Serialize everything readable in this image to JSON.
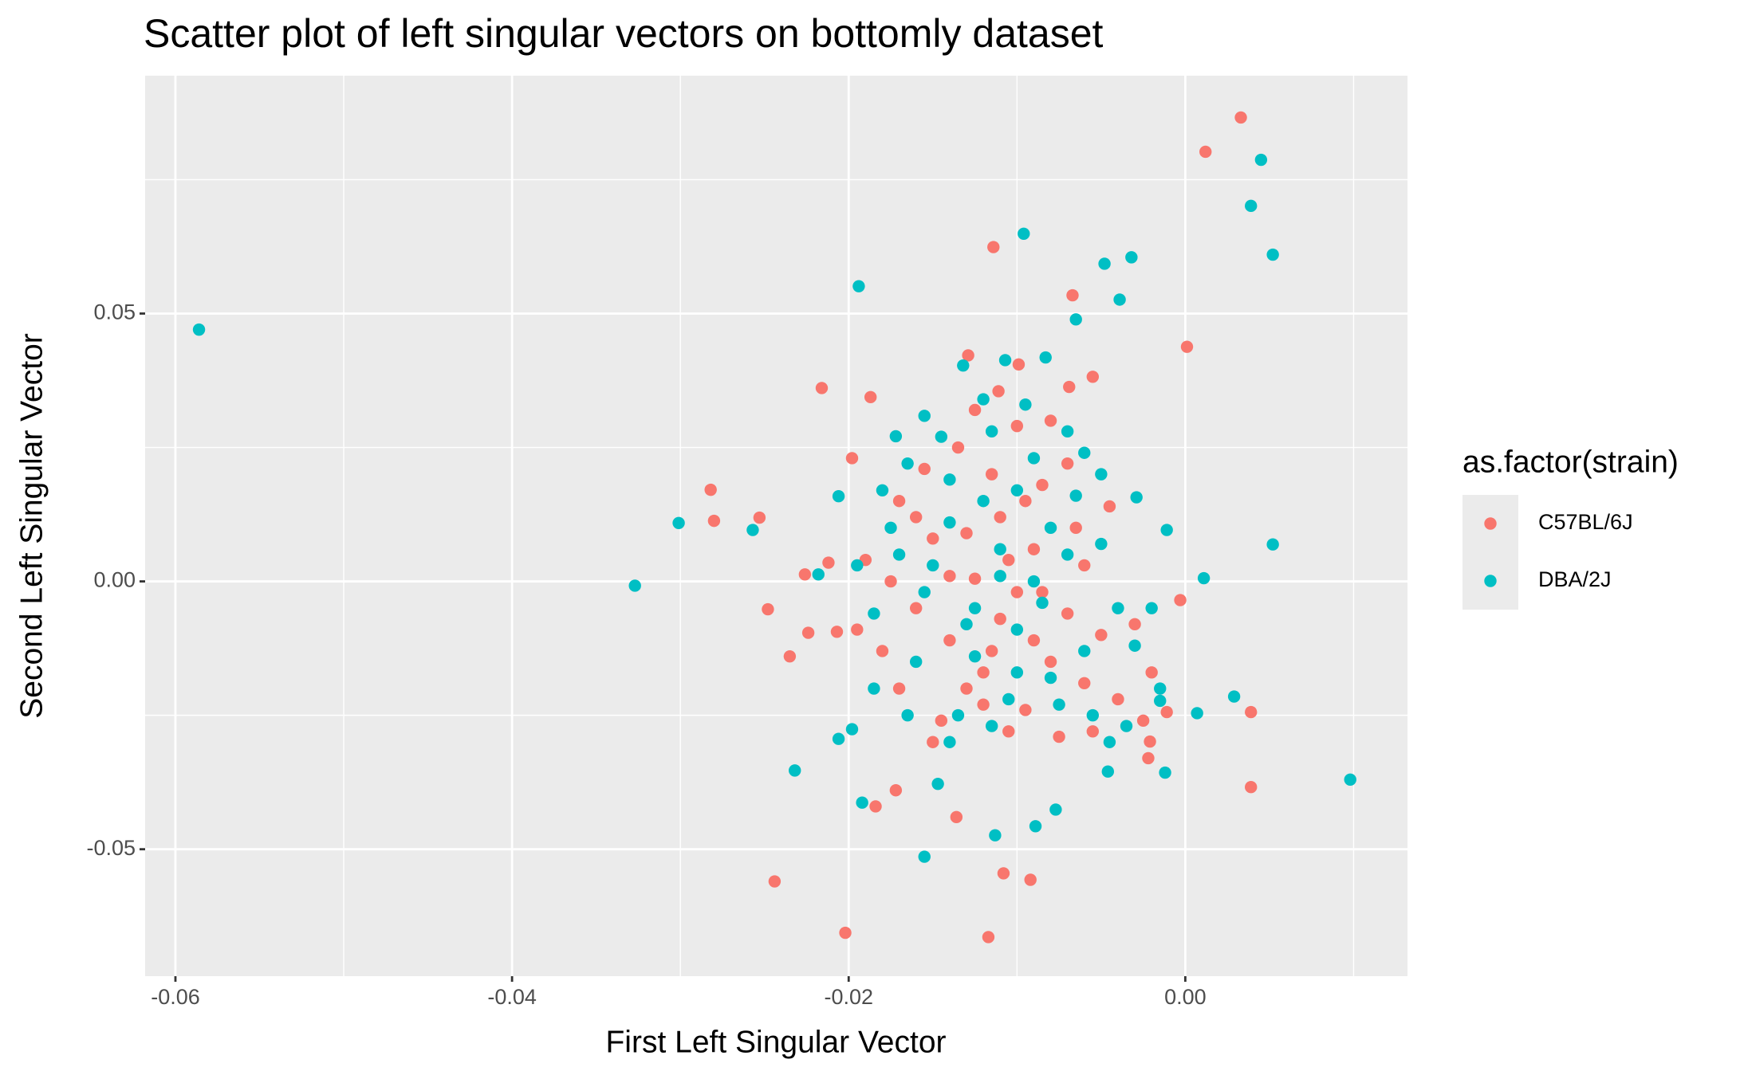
{
  "chart_data": {
    "type": "scatter",
    "title": "Scatter plot of left singular vectors on bottomly dataset",
    "x_label": "First Left Singular Vector",
    "y_label": "Second Left Singular Vector",
    "legend_title": "as.factor(strain)",
    "legend_position": "right",
    "grid": true,
    "xlim": [
      -0.0618,
      0.0132
    ],
    "ylim": [
      -0.0737,
      0.0944
    ],
    "xticks": [
      {
        "value": -0.06,
        "label": "-0.06"
      },
      {
        "value": -0.04,
        "label": "-0.04"
      },
      {
        "value": -0.02,
        "label": "-0.02"
      },
      {
        "value": 0,
        "label": "0.00"
      }
    ],
    "yticks": [
      {
        "value": -0.05,
        "label": "-0.05"
      },
      {
        "value": 0,
        "label": "0.00"
      },
      {
        "value": 0.05,
        "label": "0.05"
      }
    ],
    "x_minor_grid": [
      -0.05,
      -0.03,
      -0.01,
      0.01
    ],
    "y_minor_grid": [
      -0.025,
      0.025,
      0.075
    ],
    "series": [
      {
        "name": "C57BL/6J",
        "color": "#F8766D",
        "x": [
          -0.0125,
          -0.01,
          -0.009,
          -0.014,
          -0.008,
          -0.011,
          -0.015,
          -0.007,
          -0.013,
          -0.0095,
          -0.016,
          -0.006,
          -0.0115,
          -0.0135,
          -0.0085,
          -0.017,
          -0.005,
          -0.004,
          -0.0105,
          -0.0145,
          -0.0075,
          -0.018,
          -0.012,
          -0.0065,
          -0.0155,
          -0.01,
          -0.0125,
          -0.008,
          -0.019,
          -0.017,
          -0.003,
          -0.002,
          -0.0045,
          -0.014,
          -0.011,
          -0.009,
          -0.013,
          -0.006,
          -0.0175,
          -0.0105,
          -0.015,
          -0.012,
          -0.0085,
          -0.007,
          -0.016,
          -0.0025,
          -0.0055,
          -0.0195,
          -0.0115,
          -0.0095,
          0.0033,
          0.0012,
          -0.0114,
          -0.0067,
          0.0001,
          -0.0216,
          -0.0187,
          -0.0282,
          -0.028,
          -0.0253,
          -0.0248,
          -0.0235,
          -0.0226,
          -0.0212,
          -0.0198,
          0.0039,
          0.0039,
          -0.0172,
          -0.0184,
          -0.0136,
          -0.0244,
          -0.0202,
          -0.0117,
          -0.0108,
          -0.0092,
          -0.0129,
          -0.0099,
          -0.0055,
          -0.0069,
          -0.0111,
          -0.0224,
          -0.0207,
          -0.0003,
          -0.0021,
          -0.0022,
          -0.0011
        ],
        "y": [
          0.0005,
          -0.002,
          0.006,
          -0.011,
          -0.015,
          0.012,
          0.008,
          -0.006,
          -0.02,
          -0.024,
          -0.005,
          0.003,
          0.02,
          0.025,
          0.018,
          0.015,
          -0.01,
          -0.022,
          -0.028,
          -0.026,
          -0.029,
          -0.013,
          -0.017,
          0.01,
          0.021,
          0.029,
          0.032,
          0.03,
          0.004,
          -0.02,
          -0.008,
          -0.017,
          0.014,
          0.001,
          -0.007,
          -0.011,
          0.009,
          -0.019,
          0.0,
          0.004,
          -0.03,
          -0.023,
          -0.002,
          0.022,
          0.012,
          -0.026,
          -0.028,
          -0.009,
          -0.013,
          0.015,
          0.0866,
          0.0802,
          0.0624,
          0.0534,
          0.0438,
          0.0361,
          0.0344,
          0.0171,
          0.0113,
          0.0119,
          -0.0052,
          -0.014,
          0.0013,
          0.0035,
          0.023,
          -0.0244,
          -0.0384,
          -0.039,
          -0.042,
          -0.044,
          -0.056,
          -0.0656,
          -0.0664,
          -0.0545,
          -0.0557,
          0.0422,
          0.0405,
          0.0382,
          0.0363,
          0.0355,
          -0.0096,
          -0.0094,
          -0.0035,
          -0.0299,
          -0.033,
          -0.0244
        ]
      },
      {
        "name": "DBA/2J",
        "color": "#00BFC4",
        "x": [
          -0.011,
          -0.0085,
          -0.013,
          -0.007,
          -0.015,
          -0.01,
          -0.012,
          -0.006,
          -0.014,
          -0.009,
          -0.016,
          -0.005,
          -0.0105,
          -0.0135,
          -0.0075,
          -0.0175,
          -0.004,
          -0.003,
          -0.0115,
          -0.0145,
          -0.0065,
          -0.0185,
          -0.0125,
          -0.008,
          -0.0165,
          -0.0095,
          -0.012,
          -0.007,
          -0.0195,
          -0.0165,
          -0.002,
          -0.0015,
          -0.005,
          -0.0155,
          -0.01,
          -0.008,
          -0.014,
          -0.0055,
          -0.018,
          -0.011,
          -0.014,
          -0.0115,
          -0.009,
          -0.006,
          -0.017,
          -0.0035,
          -0.0045,
          -0.0185,
          -0.0125,
          -0.01,
          -0.0586,
          0.0045,
          0.0039,
          0.0052,
          -0.0096,
          -0.0194,
          -0.0032,
          -0.0048,
          -0.0039,
          -0.0065,
          -0.0301,
          -0.0327,
          -0.0257,
          0.0052,
          0.0011,
          0.0098,
          0.0029,
          0.0007,
          -0.0232,
          -0.0206,
          -0.0198,
          -0.0192,
          -0.0155,
          -0.0113,
          -0.0089,
          -0.0077,
          -0.0147,
          -0.0046,
          -0.0206,
          -0.0218,
          -0.0012,
          -0.0015,
          -0.0011,
          -0.0029,
          -0.0083,
          -0.0107,
          -0.0132,
          -0.0155,
          -0.0172
        ],
        "y": [
          0.001,
          -0.004,
          -0.008,
          0.005,
          0.003,
          -0.017,
          0.015,
          -0.013,
          0.019,
          0.023,
          -0.015,
          0.007,
          -0.022,
          -0.025,
          -0.023,
          0.01,
          -0.005,
          -0.012,
          0.028,
          0.027,
          0.016,
          -0.006,
          -0.014,
          0.01,
          0.022,
          0.033,
          0.034,
          0.028,
          0.003,
          -0.025,
          -0.005,
          -0.02,
          0.02,
          -0.002,
          -0.009,
          -0.018,
          0.011,
          -0.025,
          0.017,
          0.006,
          -0.03,
          -0.027,
          0.0,
          0.024,
          0.005,
          -0.027,
          -0.03,
          -0.02,
          -0.005,
          0.017,
          0.047,
          0.0787,
          0.0701,
          0.061,
          0.0649,
          0.0551,
          0.0605,
          0.0593,
          0.0526,
          0.0489,
          0.0109,
          -0.0008,
          0.0096,
          0.0069,
          0.0006,
          -0.037,
          -0.0215,
          -0.0246,
          -0.0353,
          -0.0294,
          -0.0276,
          -0.0413,
          -0.0514,
          -0.0474,
          -0.0457,
          -0.0426,
          -0.0378,
          -0.0355,
          0.0159,
          0.0013,
          -0.0357,
          -0.0223,
          0.0096,
          0.0157,
          0.0418,
          0.0413,
          0.0403,
          0.0309,
          0.0271
        ]
      }
    ]
  }
}
